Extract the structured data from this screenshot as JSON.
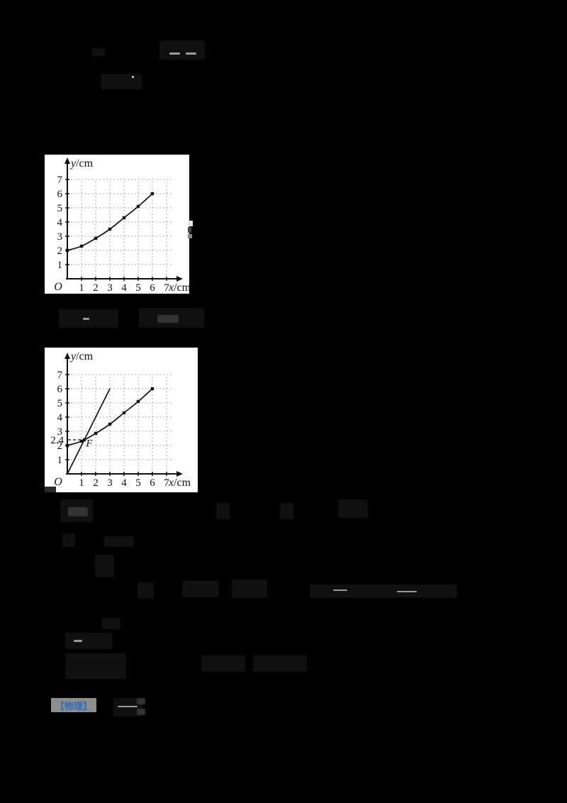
{
  "page": {
    "background": "#000000"
  },
  "colors": {
    "panel": "#ffffff",
    "ink": "#111111",
    "grid": "#a8a8a8",
    "badge_bg": "#8d8d8d",
    "badge_text": "#2f6db8"
  },
  "badge": {
    "label": "【物理】"
  },
  "chart_data": [
    {
      "type": "line",
      "title": "",
      "xlabel": "x/cm",
      "ylabel": "y/cm",
      "origin_label": "O",
      "x_ticks": [
        1,
        2,
        3,
        4,
        5,
        6,
        7
      ],
      "y_ticks": [
        1,
        2,
        3,
        4,
        5,
        6,
        7
      ],
      "xlim": [
        0,
        7.8
      ],
      "ylim": [
        0,
        8.2
      ],
      "grid": "dashed",
      "legend": "none",
      "series": [
        {
          "name": "measured-curve",
          "style": "smooth",
          "markers": true,
          "x": [
            0,
            1,
            2,
            3,
            4,
            5,
            6
          ],
          "y": [
            2.0,
            2.3,
            2.85,
            3.5,
            4.3,
            5.1,
            6.0
          ]
        }
      ]
    },
    {
      "type": "line",
      "title": "",
      "xlabel": "x/cm",
      "ylabel": "y/cm",
      "origin_label": "O",
      "x_ticks": [
        1,
        2,
        3,
        4,
        5,
        6,
        7
      ],
      "y_ticks": [
        1,
        2,
        3,
        4,
        5,
        6,
        7
      ],
      "xlim": [
        0,
        7.8
      ],
      "ylim": [
        0,
        8.2
      ],
      "grid": "dashed",
      "legend": "none",
      "series": [
        {
          "name": "measured-curve",
          "style": "smooth",
          "markers": true,
          "x": [
            0,
            1,
            2,
            3,
            4,
            5,
            6
          ],
          "y": [
            2.0,
            2.3,
            2.85,
            3.5,
            4.3,
            5.1,
            6.0
          ]
        },
        {
          "name": "straight-line-through-origin",
          "style": "straight",
          "markers": false,
          "x": [
            0,
            3
          ],
          "y": [
            0,
            6
          ]
        }
      ],
      "guide": {
        "y": 2.4,
        "x_end": 1.2,
        "label": "2.4"
      },
      "point_label": {
        "text": "F",
        "x": 1.32,
        "y": 1.92,
        "marker_x": 1.2,
        "marker_y": 2.4
      }
    }
  ]
}
